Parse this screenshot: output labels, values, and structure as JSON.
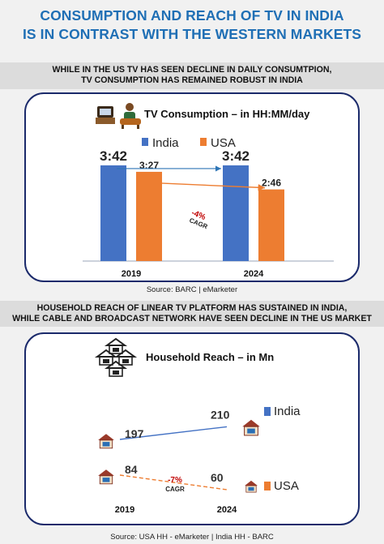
{
  "page": {
    "title_line1": "CONSUMPTION AND REACH OF TV IN INDIA",
    "title_line2": "IS IN CONTRAST WITH THE WESTERN MARKETS",
    "band1_line1": "WHILE IN THE US TV HAS SEEN DECLINE IN DAILY CONSUMTPION,",
    "band1_line2": "TV CONSUMPTION HAS REMAINED ROBUST IN INDIA",
    "band2_line1": "HOUSEHOLD REACH OF LINEAR TV PLATFORM HAS SUSTAINED IN INDIA,",
    "band2_line2": "WHILE CABLE AND BROADCAST NETWORK HAVE SEEN DECLINE IN THE US MARKET",
    "source1": "Source: BARC | eMarketer",
    "source2": "Source: USA HH - eMarketer | India HH - BARC"
  },
  "chart_data": [
    {
      "type": "bar",
      "title": "TV Consumption – in HH:MM/day",
      "icon": "person-watching-tv-icon",
      "categories": [
        "2019",
        "2024"
      ],
      "series": [
        {
          "name": "India",
          "values": [
            3.7,
            3.7
          ],
          "labels": [
            "3:42",
            "3:42"
          ],
          "color": "#4472c4"
        },
        {
          "name": "USA",
          "values": [
            3.45,
            2.77
          ],
          "labels": [
            "3:27",
            "2:46"
          ],
          "color": "#ed7d31"
        }
      ],
      "annotation": {
        "text_line1": "-4%",
        "text_line2": "CAGR",
        "color": "#c00000"
      },
      "ylim": [
        0,
        4.2
      ]
    },
    {
      "type": "line",
      "title": "Household  Reach – in Mn",
      "icon": "houses-with-tv-icon",
      "categories": [
        "2019",
        "2024"
      ],
      "series": [
        {
          "name": "India",
          "values": [
            197,
            210
          ],
          "color": "#4472c4"
        },
        {
          "name": "USA",
          "values": [
            84,
            60
          ],
          "color": "#ed7d31"
        }
      ],
      "annotation": {
        "text_line1": "-7%",
        "text_line2": "CAGR",
        "color": "#c00000"
      },
      "ylim": [
        40,
        230
      ]
    }
  ]
}
